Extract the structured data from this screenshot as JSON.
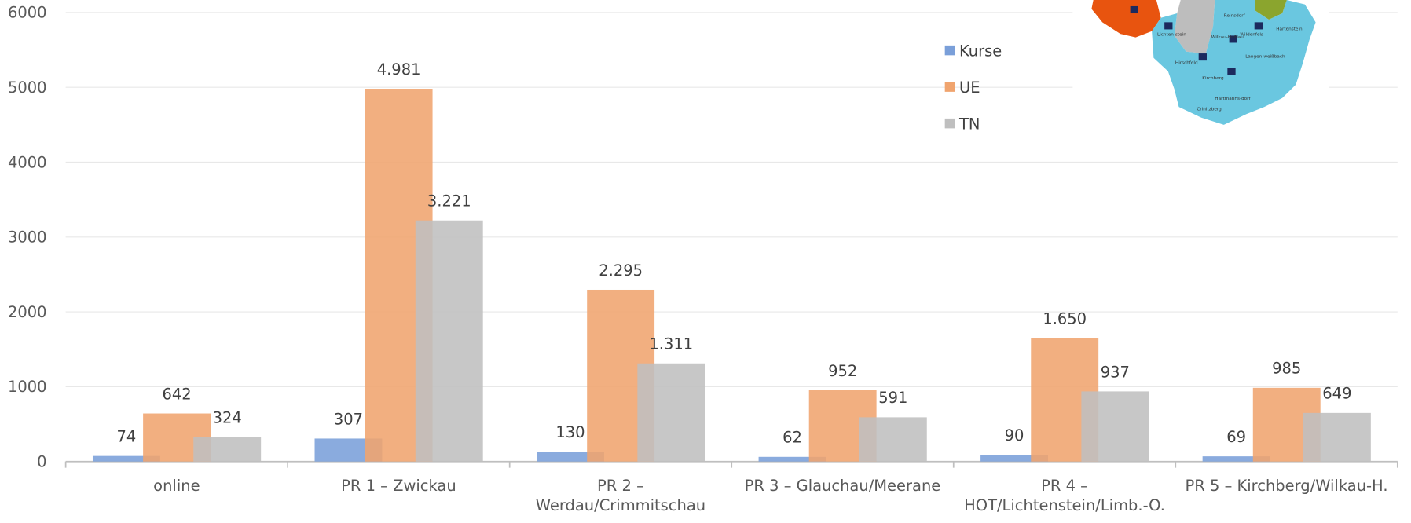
{
  "chart_data": {
    "type": "bar",
    "categories": [
      "online",
      "PR 1 – Zwickau",
      "PR 2 –\nWerdau/Crimmitschau",
      "PR 3 – Glauchau/Meerane",
      "PR 4 –\nHOT/Lichtenstein/Limb.-O.",
      "PR 5 – Kirchberg/Wilkau-H."
    ],
    "series": [
      {
        "name": "Kurse",
        "color": "#7a9fd9",
        "values": [
          74,
          307,
          130,
          62,
          90,
          69
        ]
      },
      {
        "name": "UE",
        "color": "#f0a46e",
        "values": [
          642,
          4981,
          2295,
          952,
          1650,
          985
        ],
        "value_labels": [
          "642",
          "4.981",
          "2.295",
          "952",
          "1.650",
          "985"
        ]
      },
      {
        "name": "TN",
        "color": "#bfbfbf",
        "values": [
          324,
          3221,
          1311,
          591,
          937,
          649
        ],
        "value_labels": [
          "324",
          "3.221",
          "1.311",
          "591",
          "937",
          "649"
        ]
      }
    ],
    "ylim": [
      0,
      6000
    ],
    "yticks": [
      0,
      1000,
      2000,
      3000,
      4000,
      5000,
      6000
    ],
    "grid": true,
    "legend": "top-right"
  },
  "inset_map": {
    "labels": [
      "Reinsdorf",
      "Lichten-stein",
      "Wilkau-Haßlau",
      "Wildenfels",
      "Hartenstein",
      "Hirschfeld",
      "Langen-weißbach",
      "Kirchberg",
      "Hartmanns-dorf",
      "Crinitzberg"
    ]
  }
}
